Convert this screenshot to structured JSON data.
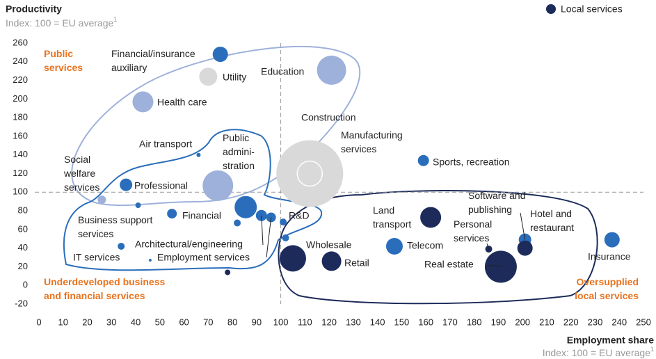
{
  "chart_data": {
    "type": "scatter",
    "title": "Productivity",
    "subtitle": "Index: 100 = EU average",
    "subtitle_mark": "1",
    "x_label": "Employment share",
    "x_sublabel": "Index: 100 = EU average",
    "x_sublabel_mark": "1",
    "legend": {
      "label": "Local services",
      "color": "#1c2b5a",
      "position": "top-right"
    },
    "regions": [
      "Public\nservices",
      "Underdeveloped business\nand financial services",
      "Oversupplied\nlocal services"
    ],
    "reference_lines": {
      "x": 100,
      "y": 100
    },
    "xlim": [
      0,
      250
    ],
    "xticks": [
      0,
      10,
      20,
      30,
      40,
      50,
      60,
      70,
      80,
      90,
      100,
      110,
      120,
      130,
      140,
      150,
      160,
      170,
      180,
      190,
      200,
      210,
      220,
      230,
      240,
      250
    ],
    "ylim": [
      -20,
      260
    ],
    "yticks": [
      -20,
      0,
      20,
      40,
      60,
      80,
      100,
      120,
      140,
      160,
      180,
      200,
      220,
      240,
      260
    ],
    "points": [
      {
        "label": "Manufacturing\nservices",
        "x": 112,
        "y": 120,
        "size": 48,
        "color": "#d9d9d9"
      },
      {
        "label": "Construction",
        "x": 112,
        "y": 120,
        "size": 18,
        "color": "#d9d9d9"
      },
      {
        "label": "Financial/insurance\nauxiliary",
        "x": 75,
        "y": 248,
        "size": 11,
        "color": "#2a6ebb"
      },
      {
        "label": "Utility",
        "x": 70,
        "y": 224,
        "size": 13,
        "color": "#d9d9d9"
      },
      {
        "label": "Education",
        "x": 121,
        "y": 231,
        "size": 21,
        "color": "#9eb1db"
      },
      {
        "label": "Health care",
        "x": 43,
        "y": 197,
        "size": 15,
        "color": "#9eb1db"
      },
      {
        "label": "Air transport",
        "x": 66,
        "y": 140,
        "size": 3,
        "color": "#2a6ebb"
      },
      {
        "label": "Sports, recreation",
        "x": 159,
        "y": 134,
        "size": 8,
        "color": "#2a6ebb"
      },
      {
        "label": "Social\nwelfare\nservices",
        "x": 26,
        "y": 92,
        "size": 6,
        "color": "#9eb1db"
      },
      {
        "label": "Professional",
        "x": 36,
        "y": 108,
        "size": 9,
        "color": "#2a6ebb"
      },
      {
        "label": "Public\nadmini-\nstration",
        "x": 74,
        "y": 107,
        "size": 22,
        "color": "#9eb1db"
      },
      {
        "label": null,
        "x": 41,
        "y": 86,
        "size": 4,
        "color": "#2a6ebb"
      },
      {
        "label": "Financial",
        "x": 85.5,
        "y": 84,
        "size": 16,
        "color": "#2a6ebb"
      },
      {
        "label": "Business support\nservices",
        "x": 55,
        "y": 77,
        "size": 7,
        "color": "#2a6ebb"
      },
      {
        "label": null,
        "x": 82,
        "y": 67,
        "size": 5,
        "color": "#2a6ebb"
      },
      {
        "label": "Architectural/engineering",
        "x": 92,
        "y": 75,
        "size": 8,
        "color": "#2a6ebb"
      },
      {
        "label": "Employment services",
        "x": 96,
        "y": 73,
        "size": 7,
        "color": "#2a6ebb"
      },
      {
        "label": "R&D",
        "x": 101,
        "y": 68,
        "size": 5,
        "color": "#2a6ebb"
      },
      {
        "label": null,
        "x": 102,
        "y": 51,
        "size": 5,
        "color": "#2a6ebb"
      },
      {
        "label": "IT services",
        "x": 34,
        "y": 42,
        "size": 5,
        "color": "#2a6ebb"
      },
      {
        "label": null,
        "x": 46,
        "y": 27,
        "size": 2,
        "color": "#2a6ebb"
      },
      {
        "label": null,
        "x": 78,
        "y": 14,
        "size": 4,
        "color": "#1c2b5a"
      },
      {
        "label": "Wholesale",
        "x": 105,
        "y": 29,
        "size": 19,
        "color": "#1c2b5a"
      },
      {
        "label": "Retail",
        "x": 121,
        "y": 26,
        "size": 14,
        "color": "#1c2b5a"
      },
      {
        "label": "Telecom",
        "x": 147,
        "y": 42,
        "size": 12,
        "color": "#2a6ebb"
      },
      {
        "label": "Land\ntransport",
        "x": 162,
        "y": 73,
        "size": 15,
        "color": "#1c2b5a"
      },
      {
        "label": "Personal\nservices",
        "x": 186,
        "y": 39,
        "size": 5,
        "color": "#1c2b5a"
      },
      {
        "label": "Real estate",
        "x": 191,
        "y": 20,
        "size": 23,
        "color": "#1c2b5a"
      },
      {
        "label": "Software and\npublishing",
        "x": 201,
        "y": 49,
        "size": 9,
        "color": "#2a6ebb"
      },
      {
        "label": "Hotel and\nrestaurant",
        "x": 201,
        "y": 40,
        "size": 11,
        "color": "#1c2b5a"
      },
      {
        "label": "Insurance",
        "x": 237,
        "y": 49,
        "size": 11,
        "color": "#2a6ebb"
      }
    ]
  }
}
